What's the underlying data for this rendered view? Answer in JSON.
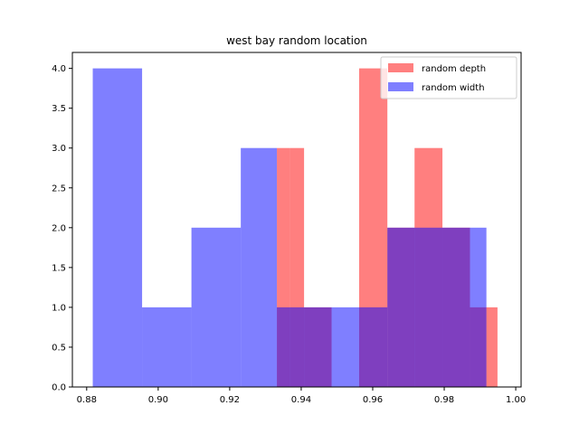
{
  "chart_data": {
    "type": "histogram",
    "title": "west bay random location",
    "xlabel": "",
    "ylabel": "",
    "xlim": [
      0.876,
      1.0015
    ],
    "ylim": [
      0,
      4.2
    ],
    "xticks": [
      0.88,
      0.9,
      0.92,
      0.94,
      0.96,
      0.98,
      1.0
    ],
    "xtick_labels": [
      "0.88",
      "0.90",
      "0.92",
      "0.94",
      "0.96",
      "0.98",
      "1.00"
    ],
    "yticks": [
      0,
      0.5,
      1.0,
      1.5,
      2.0,
      2.5,
      3.0,
      3.5,
      4.0
    ],
    "ytick_labels": [
      "0.0",
      "0.5",
      "1.0",
      "1.5",
      "2.0",
      "2.5",
      "3.0",
      "3.5",
      "4.0"
    ],
    "grid": false,
    "legend_position": "upper right",
    "series": [
      {
        "name": "random depth",
        "color": "#ff0000",
        "alpha": 0.5,
        "bins": [
          {
            "x0": 0.9332,
            "x1": 0.9368,
            "count": 3
          },
          {
            "x0": 0.9368,
            "x1": 0.9408,
            "count": 3
          },
          {
            "x0": 0.9408,
            "x1": 0.9485,
            "count": 1
          },
          {
            "x0": 0.9485,
            "x1": 0.9562,
            "count": 0
          },
          {
            "x0": 0.9562,
            "x1": 0.9641,
            "count": 4
          },
          {
            "x0": 0.9641,
            "x1": 0.9717,
            "count": 2
          },
          {
            "x0": 0.9717,
            "x1": 0.9795,
            "count": 3
          },
          {
            "x0": 0.9795,
            "x1": 0.9872,
            "count": 2
          },
          {
            "x0": 0.9872,
            "x1": 0.9918,
            "count": 1
          },
          {
            "x0": 0.9918,
            "x1": 0.9949,
            "count": 1
          }
        ]
      },
      {
        "name": "random width",
        "color": "#0000ff",
        "alpha": 0.5,
        "bins": [
          {
            "x0": 0.8817,
            "x1": 0.8955,
            "count": 4
          },
          {
            "x0": 0.8955,
            "x1": 0.9093,
            "count": 1
          },
          {
            "x0": 0.9093,
            "x1": 0.9231,
            "count": 2
          },
          {
            "x0": 0.9231,
            "x1": 0.9332,
            "count": 3
          },
          {
            "x0": 0.9332,
            "x1": 0.9485,
            "count": 1
          },
          {
            "x0": 0.9485,
            "x1": 0.9562,
            "count": 1
          },
          {
            "x0": 0.9562,
            "x1": 0.9641,
            "count": 1
          },
          {
            "x0": 0.9641,
            "x1": 0.9872,
            "count": 2
          },
          {
            "x0": 0.9872,
            "x1": 0.9918,
            "count": 2
          },
          {
            "x0": 0.9918,
            "x1": 0.9949,
            "count": 0
          }
        ]
      }
    ]
  }
}
